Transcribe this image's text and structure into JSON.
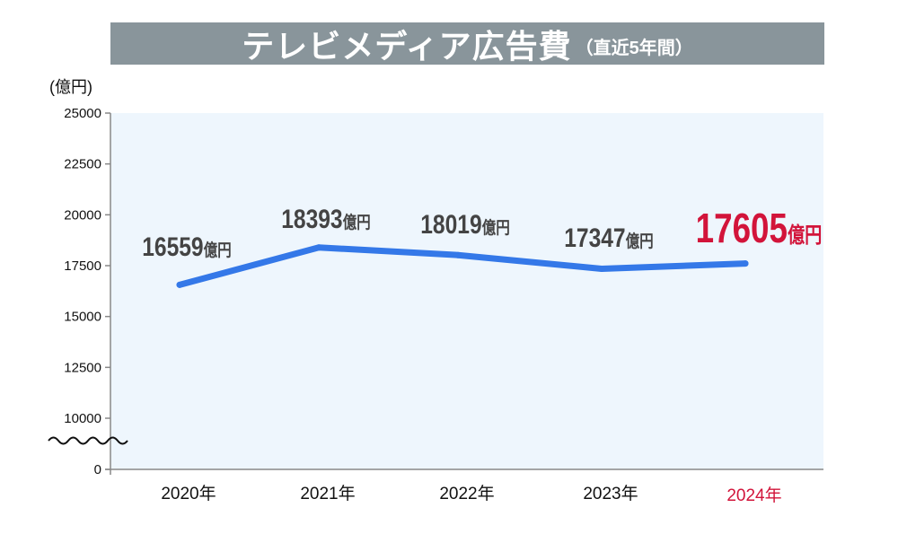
{
  "header": {
    "title": "テレビメディア広告費",
    "subtitle": "（直近5年間）"
  },
  "chart_data": {
    "type": "line",
    "title": "テレビメディア広告費",
    "subtitle": "（直近5年間）",
    "ylabel": "(億円)",
    "xlabel": "",
    "categories": [
      "2020年",
      "2021年",
      "2022年",
      "2023年",
      "2024年"
    ],
    "series": [
      {
        "values": [
          16559,
          18393,
          18019,
          17347,
          17605
        ],
        "color": "#3478e8"
      }
    ],
    "data_labels": [
      {
        "value": "16559",
        "unit": "億円"
      },
      {
        "value": "18393",
        "unit": "億円"
      },
      {
        "value": "18019",
        "unit": "億円"
      },
      {
        "value": "17347",
        "unit": "億円"
      },
      {
        "value": "17605",
        "unit": "億円"
      }
    ],
    "yticks": [
      "0",
      "10000",
      "12500",
      "15000",
      "17500",
      "20000",
      "22500",
      "25000"
    ],
    "ylim": [
      0,
      25000
    ],
    "axis_break": "between 0 and 10000",
    "highlight_index": 4,
    "highlight_color": "#d2143a",
    "plot_background": "#eef6fd",
    "grid": false
  }
}
